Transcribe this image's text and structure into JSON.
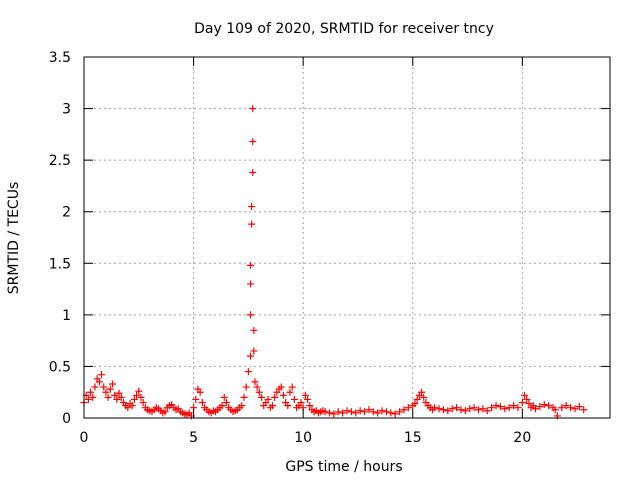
{
  "chart_data": {
    "type": "scatter",
    "title": "Day 109 of 2020, SRMTID for receiver tncy",
    "xlabel": "GPS time / hours",
    "ylabel": "SRMTID / TECUs",
    "xlim": [
      0,
      24
    ],
    "ylim": [
      0,
      3.5
    ],
    "xticks": [
      0,
      5,
      10,
      15,
      20
    ],
    "yticks": [
      0,
      0.5,
      1,
      1.5,
      2,
      2.5,
      3,
      3.5
    ],
    "xtick_labels": [
      "0",
      "5",
      "10",
      "15",
      "20"
    ],
    "ytick_labels": [
      "0",
      "0.5",
      "1",
      "1.5",
      "2",
      "2.5",
      "3",
      "3.5"
    ],
    "grid": true,
    "marker": "+",
    "color": "#ff0000",
    "series": [
      {
        "name": "SRMTID",
        "x": [
          0.0,
          0.1,
          0.2,
          0.3,
          0.4,
          0.5,
          0.6,
          0.7,
          0.8,
          0.9,
          1.0,
          1.1,
          1.2,
          1.3,
          1.4,
          1.5,
          1.6,
          1.7,
          1.8,
          1.9,
          2.0,
          2.1,
          2.2,
          2.3,
          2.4,
          2.5,
          2.6,
          2.7,
          2.8,
          2.9,
          3.0,
          3.1,
          3.2,
          3.3,
          3.4,
          3.5,
          3.6,
          3.7,
          3.8,
          3.9,
          4.0,
          4.1,
          4.2,
          4.3,
          4.4,
          4.5,
          4.6,
          4.7,
          4.8,
          4.9,
          5.0,
          5.1,
          5.2,
          5.3,
          5.4,
          5.5,
          5.6,
          5.7,
          5.8,
          5.9,
          6.0,
          6.1,
          6.2,
          6.3,
          6.4,
          6.5,
          6.6,
          6.7,
          6.8,
          6.9,
          7.0,
          7.1,
          7.2,
          7.3,
          7.4,
          7.5,
          7.6,
          7.6,
          7.6,
          7.6,
          7.65,
          7.65,
          7.7,
          7.7,
          7.7,
          7.75,
          7.75,
          7.8,
          7.9,
          8.0,
          8.1,
          8.2,
          8.3,
          8.4,
          8.5,
          8.6,
          8.7,
          8.8,
          8.9,
          9.0,
          9.1,
          9.2,
          9.3,
          9.4,
          9.5,
          9.6,
          9.7,
          9.8,
          9.9,
          10.0,
          10.1,
          10.2,
          10.3,
          10.4,
          10.5,
          10.6,
          10.7,
          10.8,
          10.9,
          11.0,
          11.2,
          11.4,
          11.6,
          11.8,
          12.0,
          12.2,
          12.4,
          12.6,
          12.8,
          13.0,
          13.2,
          13.4,
          13.6,
          13.8,
          14.0,
          14.2,
          14.4,
          14.6,
          14.8,
          15.0,
          15.1,
          15.2,
          15.3,
          15.4,
          15.5,
          15.6,
          15.7,
          15.8,
          15.9,
          16.0,
          16.2,
          16.4,
          16.6,
          16.8,
          17.0,
          17.2,
          17.4,
          17.6,
          17.8,
          18.0,
          18.2,
          18.4,
          18.6,
          18.8,
          19.0,
          19.2,
          19.4,
          19.6,
          19.8,
          20.0,
          20.1,
          20.2,
          20.3,
          20.4,
          20.5,
          20.6,
          20.8,
          21.0,
          21.2,
          21.4,
          21.5,
          21.6,
          21.8,
          22.0,
          22.2,
          22.4,
          22.6,
          22.8
        ],
        "y": [
          0.15,
          0.22,
          0.18,
          0.25,
          0.2,
          0.3,
          0.38,
          0.35,
          0.42,
          0.3,
          0.25,
          0.2,
          0.28,
          0.33,
          0.22,
          0.18,
          0.24,
          0.2,
          0.15,
          0.12,
          0.1,
          0.14,
          0.12,
          0.18,
          0.22,
          0.26,
          0.2,
          0.15,
          0.1,
          0.08,
          0.07,
          0.06,
          0.08,
          0.1,
          0.09,
          0.07,
          0.05,
          0.06,
          0.1,
          0.12,
          0.13,
          0.1,
          0.08,
          0.09,
          0.06,
          0.05,
          0.04,
          0.03,
          0.05,
          0.02,
          0.1,
          0.18,
          0.28,
          0.25,
          0.15,
          0.1,
          0.08,
          0.06,
          0.05,
          0.07,
          0.06,
          0.08,
          0.1,
          0.12,
          0.2,
          0.15,
          0.1,
          0.08,
          0.06,
          0.07,
          0.08,
          0.1,
          0.12,
          0.2,
          0.3,
          0.45,
          0.6,
          1.0,
          1.3,
          1.48,
          1.88,
          2.05,
          2.38,
          2.68,
          3.0,
          0.85,
          0.65,
          0.35,
          0.3,
          0.25,
          0.2,
          0.12,
          0.15,
          0.18,
          0.1,
          0.12,
          0.2,
          0.25,
          0.28,
          0.3,
          0.22,
          0.15,
          0.12,
          0.25,
          0.3,
          0.18,
          0.1,
          0.12,
          0.15,
          0.1,
          0.22,
          0.18,
          0.12,
          0.08,
          0.06,
          0.07,
          0.05,
          0.06,
          0.07,
          0.06,
          0.05,
          0.04,
          0.06,
          0.05,
          0.07,
          0.06,
          0.05,
          0.07,
          0.06,
          0.08,
          0.06,
          0.05,
          0.07,
          0.06,
          0.05,
          0.04,
          0.06,
          0.08,
          0.1,
          0.12,
          0.14,
          0.18,
          0.22,
          0.25,
          0.2,
          0.15,
          0.12,
          0.1,
          0.08,
          0.1,
          0.09,
          0.08,
          0.07,
          0.09,
          0.1,
          0.08,
          0.07,
          0.09,
          0.1,
          0.08,
          0.09,
          0.07,
          0.1,
          0.12,
          0.11,
          0.09,
          0.1,
          0.12,
          0.1,
          0.15,
          0.22,
          0.18,
          0.14,
          0.1,
          0.12,
          0.09,
          0.11,
          0.13,
          0.12,
          0.1,
          0.08,
          0.02,
          0.1,
          0.12,
          0.1,
          0.09,
          0.11,
          0.08
        ]
      }
    ]
  }
}
